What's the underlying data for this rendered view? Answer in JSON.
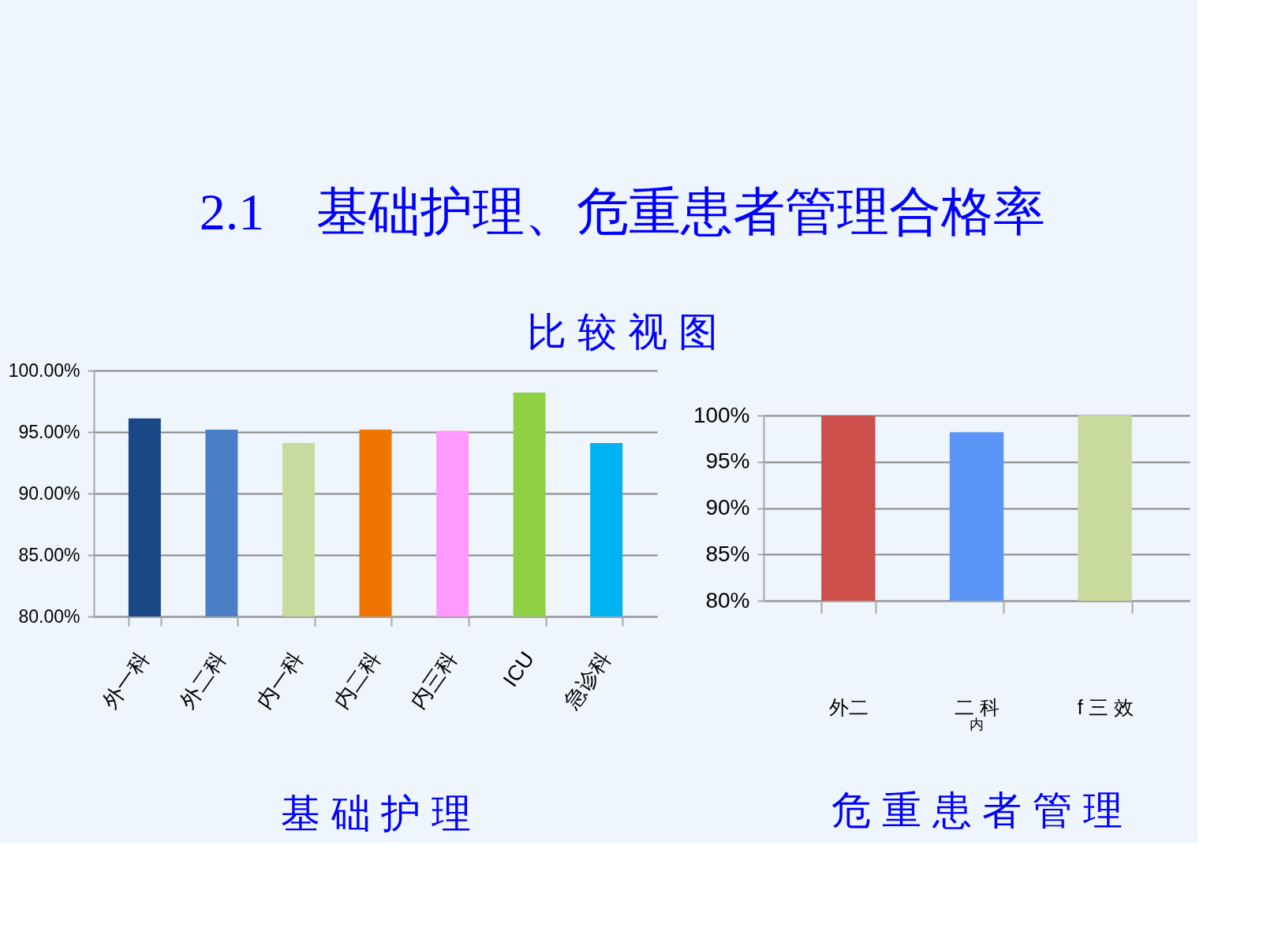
{
  "chart_data": [
    {
      "type": "bar",
      "title": "2.1　基础护理、危重患者管理合格率",
      "subtitle": "比 较 视 图",
      "xlabel": "基 础 护 理",
      "categories": [
        "外一科",
        "外二科",
        "内一科",
        "内二科",
        "内三科",
        "ICU",
        "急诊科"
      ],
      "values": [
        96.1,
        95.2,
        94.1,
        95.2,
        95.1,
        98.2,
        94.1
      ],
      "colors": [
        "#1a4785",
        "#4a7fc5",
        "#c8db9e",
        "#f07400",
        "#ff99ff",
        "#8fd045",
        "#00b2f0"
      ],
      "ylim": [
        80,
        100
      ],
      "yticks": [
        {
          "value": 80,
          "label": "80.00%"
        },
        {
          "value": 85,
          "label": "85.00%"
        },
        {
          "value": 90,
          "label": "90.00%"
        },
        {
          "value": 95,
          "label": "95.00%"
        },
        {
          "value": 100,
          "label": "100.00%"
        }
      ],
      "grid": "y"
    },
    {
      "type": "bar",
      "xlabel": "危 重 患 者 管 理",
      "categories": [
        "外二",
        "二 科",
        "f 三 效"
      ],
      "values": [
        100,
        98.2,
        100
      ],
      "colors": [
        "#cc4f4c",
        "#5a94f7",
        "#c8da9c"
      ],
      "ylim": [
        80,
        100
      ],
      "yticks": [
        {
          "value": 80,
          "label": "80%"
        },
        {
          "value": 85,
          "label": "85%"
        },
        {
          "value": 90,
          "label": "90%"
        },
        {
          "value": 95,
          "label": "95%"
        },
        {
          "value": 100,
          "label": "100%"
        }
      ],
      "grid": "y",
      "annotations": [
        "内"
      ]
    }
  ]
}
